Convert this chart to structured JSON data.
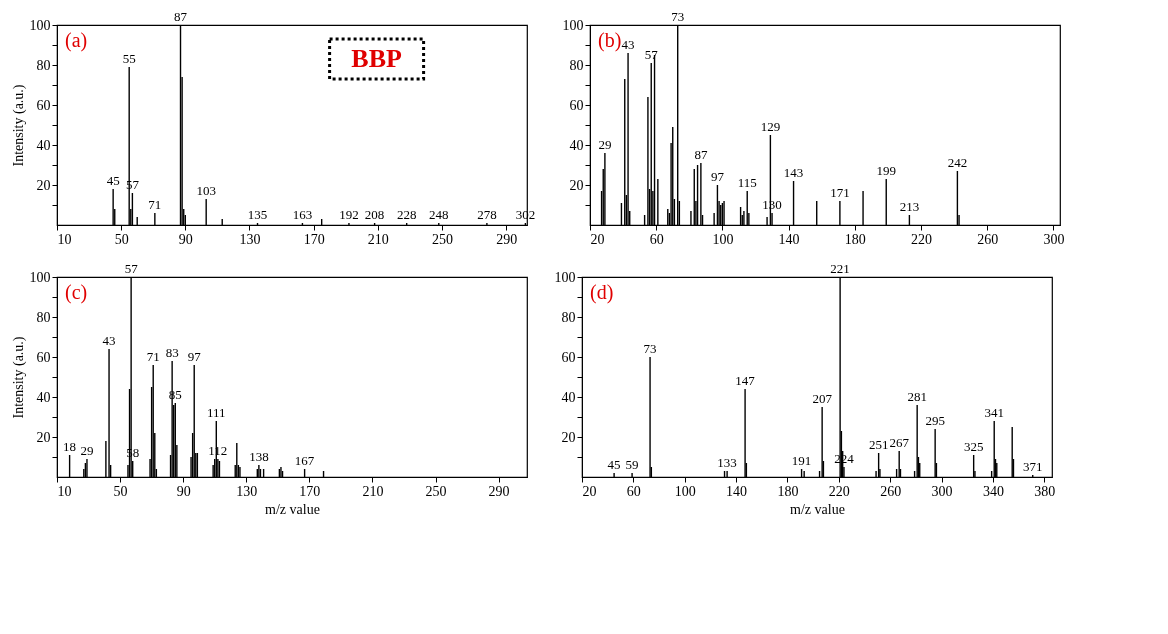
{
  "chart_data": [
    {
      "type": "bar",
      "ylabel": "Intensity (a.u.)",
      "xlim": [
        10,
        303
      ],
      "ylim": [
        0,
        100
      ],
      "xticks": [
        10,
        50,
        90,
        130,
        170,
        210,
        250,
        290
      ],
      "yticks": [
        {
          "value": 10,
          "label": null
        },
        20,
        {
          "value": 30,
          "label": null
        },
        40,
        {
          "value": 50,
          "label": null
        },
        60,
        {
          "value": 70,
          "label": null
        },
        80,
        {
          "value": 90,
          "label": null
        },
        100
      ],
      "grid": false,
      "series": [
        {
          "color": "#000000",
          "x": [
            45,
            46,
            55,
            56,
            57,
            60,
            71,
            87,
            88,
            89,
            90,
            103,
            113,
            135,
            163,
            175,
            192,
            208,
            228,
            248,
            278,
            302
          ],
          "values": [
            18,
            8,
            79,
            8,
            16,
            4,
            6,
            100,
            74,
            8,
            5,
            13,
            3,
            1,
            1,
            3,
            1,
            1,
            1,
            1,
            1,
            1
          ]
        }
      ],
      "annotations": [
        "(a)",
        "BBP",
        {
          "text": "45",
          "x": 45,
          "y": 18
        },
        {
          "text": "55",
          "x": 55,
          "y": 79
        },
        {
          "text": "57",
          "x": 57,
          "y": 16
        },
        {
          "text": "71",
          "x": 71,
          "y": 6
        },
        {
          "text": "87",
          "x": 87,
          "y": 100
        },
        {
          "text": "103",
          "x": 103,
          "y": 13
        },
        {
          "text": "135",
          "x": 135,
          "y": 1
        },
        {
          "text": "163",
          "x": 163,
          "y": 1
        },
        {
          "text": "192",
          "x": 192,
          "y": 1
        },
        {
          "text": "208",
          "x": 208,
          "y": 1
        },
        {
          "text": "228",
          "x": 228,
          "y": 1
        },
        {
          "text": "248",
          "x": 248,
          "y": 1
        },
        {
          "text": "278",
          "x": 278,
          "y": 1
        },
        {
          "text": "302",
          "x": 302,
          "y": 1
        }
      ]
    },
    {
      "type": "bar",
      "xlim": [
        20,
        304
      ],
      "ylim": [
        0,
        100
      ],
      "xticks": [
        20,
        60,
        100,
        140,
        180,
        220,
        260,
        300
      ],
      "yticks": [
        {
          "value": 10,
          "label": null
        },
        20,
        {
          "value": 30,
          "label": null
        },
        40,
        {
          "value": 50,
          "label": null
        },
        60,
        {
          "value": 70,
          "label": null
        },
        80,
        {
          "value": 90,
          "label": null
        },
        100
      ],
      "grid": false,
      "series": [
        {
          "color": "#000000",
          "x": [
            27,
            28,
            29,
            39,
            41,
            42,
            43,
            44,
            53,
            55,
            56,
            57,
            58,
            59,
            61,
            67,
            68,
            69,
            70,
            71,
            73,
            74,
            81,
            83,
            84,
            85,
            87,
            88,
            95,
            97,
            98,
            99,
            100,
            101,
            111,
            112,
            113,
            115,
            116,
            127,
            129,
            130,
            143,
            157,
            171,
            185,
            199,
            213,
            242,
            243
          ],
          "values": [
            17,
            28,
            36,
            11,
            73,
            15,
            86,
            7,
            5,
            64,
            18,
            81,
            17,
            85,
            23,
            8,
            6,
            41,
            49,
            13,
            100,
            12,
            7,
            28,
            12,
            30,
            31,
            5,
            6,
            20,
            12,
            10,
            11,
            12,
            9,
            5,
            7,
            17,
            6,
            4,
            45,
            6,
            22,
            12,
            12,
            17,
            23,
            5,
            27,
            5
          ]
        }
      ],
      "annotations": [
        "(b)",
        {
          "text": "29",
          "x": 29,
          "y": 36
        },
        {
          "text": "43",
          "x": 43,
          "y": 86
        },
        {
          "text": "57",
          "x": 57,
          "y": 81
        },
        {
          "text": "73",
          "x": 73,
          "y": 100
        },
        {
          "text": "87",
          "x": 87,
          "y": 31
        },
        {
          "text": "97",
          "x": 97,
          "y": 20
        },
        {
          "text": "115",
          "x": 115,
          "y": 17
        },
        {
          "text": "129",
          "x": 129,
          "y": 45
        },
        {
          "text": "130",
          "x": 130,
          "y": 6
        },
        {
          "text": "143",
          "x": 143,
          "y": 22
        },
        {
          "text": "171",
          "x": 171,
          "y": 12
        },
        {
          "text": "199",
          "x": 199,
          "y": 23
        },
        {
          "text": "213",
          "x": 213,
          "y": 5
        },
        {
          "text": "242",
          "x": 242,
          "y": 27
        }
      ]
    },
    {
      "type": "bar",
      "ylabel": "Intensity (a.u.)",
      "xlabel": "m/z value",
      "xlim": [
        10,
        308
      ],
      "ylim": [
        0,
        100
      ],
      "xticks": [
        10,
        50,
        90,
        130,
        170,
        210,
        250,
        290
      ],
      "yticks": [
        {
          "value": 10,
          "label": null
        },
        20,
        {
          "value": 30,
          "label": null
        },
        40,
        {
          "value": 50,
          "label": null
        },
        60,
        {
          "value": 70,
          "label": null
        },
        80,
        {
          "value": 90,
          "label": null
        },
        100
      ],
      "grid": false,
      "series": [
        {
          "color": "#000000",
          "x": [
            18,
            27,
            28,
            29,
            41,
            43,
            44,
            55,
            56,
            57,
            58,
            69,
            70,
            71,
            72,
            73,
            82,
            83,
            84,
            85,
            86,
            95,
            96,
            97,
            98,
            99,
            109,
            110,
            111,
            112,
            113,
            123,
            124,
            125,
            126,
            137,
            138,
            139,
            141,
            151,
            152,
            153,
            167,
            179
          ],
          "values": [
            11,
            4,
            7,
            9,
            18,
            64,
            6,
            6,
            44,
            100,
            8,
            9,
            45,
            56,
            22,
            4,
            11,
            58,
            36,
            37,
            16,
            10,
            22,
            56,
            12,
            12,
            6,
            9,
            28,
            9,
            8,
            6,
            17,
            6,
            5,
            4,
            6,
            4,
            4,
            4,
            5,
            3,
            4,
            3
          ]
        }
      ],
      "annotations": [
        "(c)",
        {
          "text": "18",
          "x": 18,
          "y": 11
        },
        {
          "text": "29",
          "x": 29,
          "y": 9
        },
        {
          "text": "43",
          "x": 43,
          "y": 64
        },
        {
          "text": "57",
          "x": 57,
          "y": 100
        },
        {
          "text": "58",
          "x": 58,
          "y": 8
        },
        {
          "text": "71",
          "x": 71,
          "y": 56
        },
        {
          "text": "83",
          "x": 83,
          "y": 58
        },
        {
          "text": "85",
          "x": 85,
          "y": 37
        },
        {
          "text": "97",
          "x": 97,
          "y": 56
        },
        {
          "text": "111",
          "x": 111,
          "y": 28
        },
        {
          "text": "112",
          "x": 112,
          "y": 9
        },
        {
          "text": "138",
          "x": 138,
          "y": 6
        },
        {
          "text": "167",
          "x": 167,
          "y": 4
        }
      ]
    },
    {
      "type": "bar",
      "xlabel": "m/z value",
      "xlim": [
        20,
        386
      ],
      "ylim": [
        0,
        100
      ],
      "xticks": [
        20,
        60,
        100,
        140,
        180,
        220,
        260,
        300,
        340,
        380
      ],
      "yticks": [
        {
          "value": 10,
          "label": null
        },
        20,
        {
          "value": 30,
          "label": null
        },
        40,
        {
          "value": 50,
          "label": null
        },
        60,
        {
          "value": 70,
          "label": null
        },
        80,
        {
          "value": 90,
          "label": null
        },
        100
      ],
      "grid": false,
      "series": [
        {
          "color": "#000000",
          "x": [
            45,
            59,
            73,
            74,
            131,
            133,
            147,
            148,
            191,
            193,
            205,
            207,
            208,
            221,
            222,
            223,
            224,
            249,
            251,
            252,
            265,
            267,
            268,
            279,
            281,
            282,
            283,
            295,
            296,
            325,
            326,
            339,
            341,
            342,
            343,
            355,
            356,
            371
          ],
          "values": [
            2,
            2,
            60,
            5,
            3,
            3,
            44,
            7,
            4,
            3,
            3,
            35,
            8,
            100,
            23,
            13,
            5,
            3,
            12,
            4,
            4,
            13,
            4,
            3,
            36,
            10,
            7,
            24,
            7,
            11,
            3,
            3,
            28,
            9,
            7,
            25,
            9,
            1
          ]
        }
      ],
      "annotations": [
        "(d)",
        {
          "text": "45",
          "x": 45,
          "y": 2
        },
        {
          "text": "59",
          "x": 59,
          "y": 2
        },
        {
          "text": "73",
          "x": 73,
          "y": 60
        },
        {
          "text": "133",
          "x": 133,
          "y": 3
        },
        {
          "text": "147",
          "x": 147,
          "y": 44
        },
        {
          "text": "191",
          "x": 191,
          "y": 4
        },
        {
          "text": "207",
          "x": 207,
          "y": 35
        },
        {
          "text": "221",
          "x": 221,
          "y": 100
        },
        {
          "text": "224",
          "x": 224,
          "y": 5
        },
        {
          "text": "251",
          "x": 251,
          "y": 12
        },
        {
          "text": "267",
          "x": 267,
          "y": 13
        },
        {
          "text": "281",
          "x": 281,
          "y": 36
        },
        {
          "text": "295",
          "x": 295,
          "y": 24
        },
        {
          "text": "325",
          "x": 325,
          "y": 11
        },
        {
          "text": "341",
          "x": 341,
          "y": 28
        },
        {
          "text": "371",
          "x": 371,
          "y": 1
        }
      ]
    }
  ]
}
